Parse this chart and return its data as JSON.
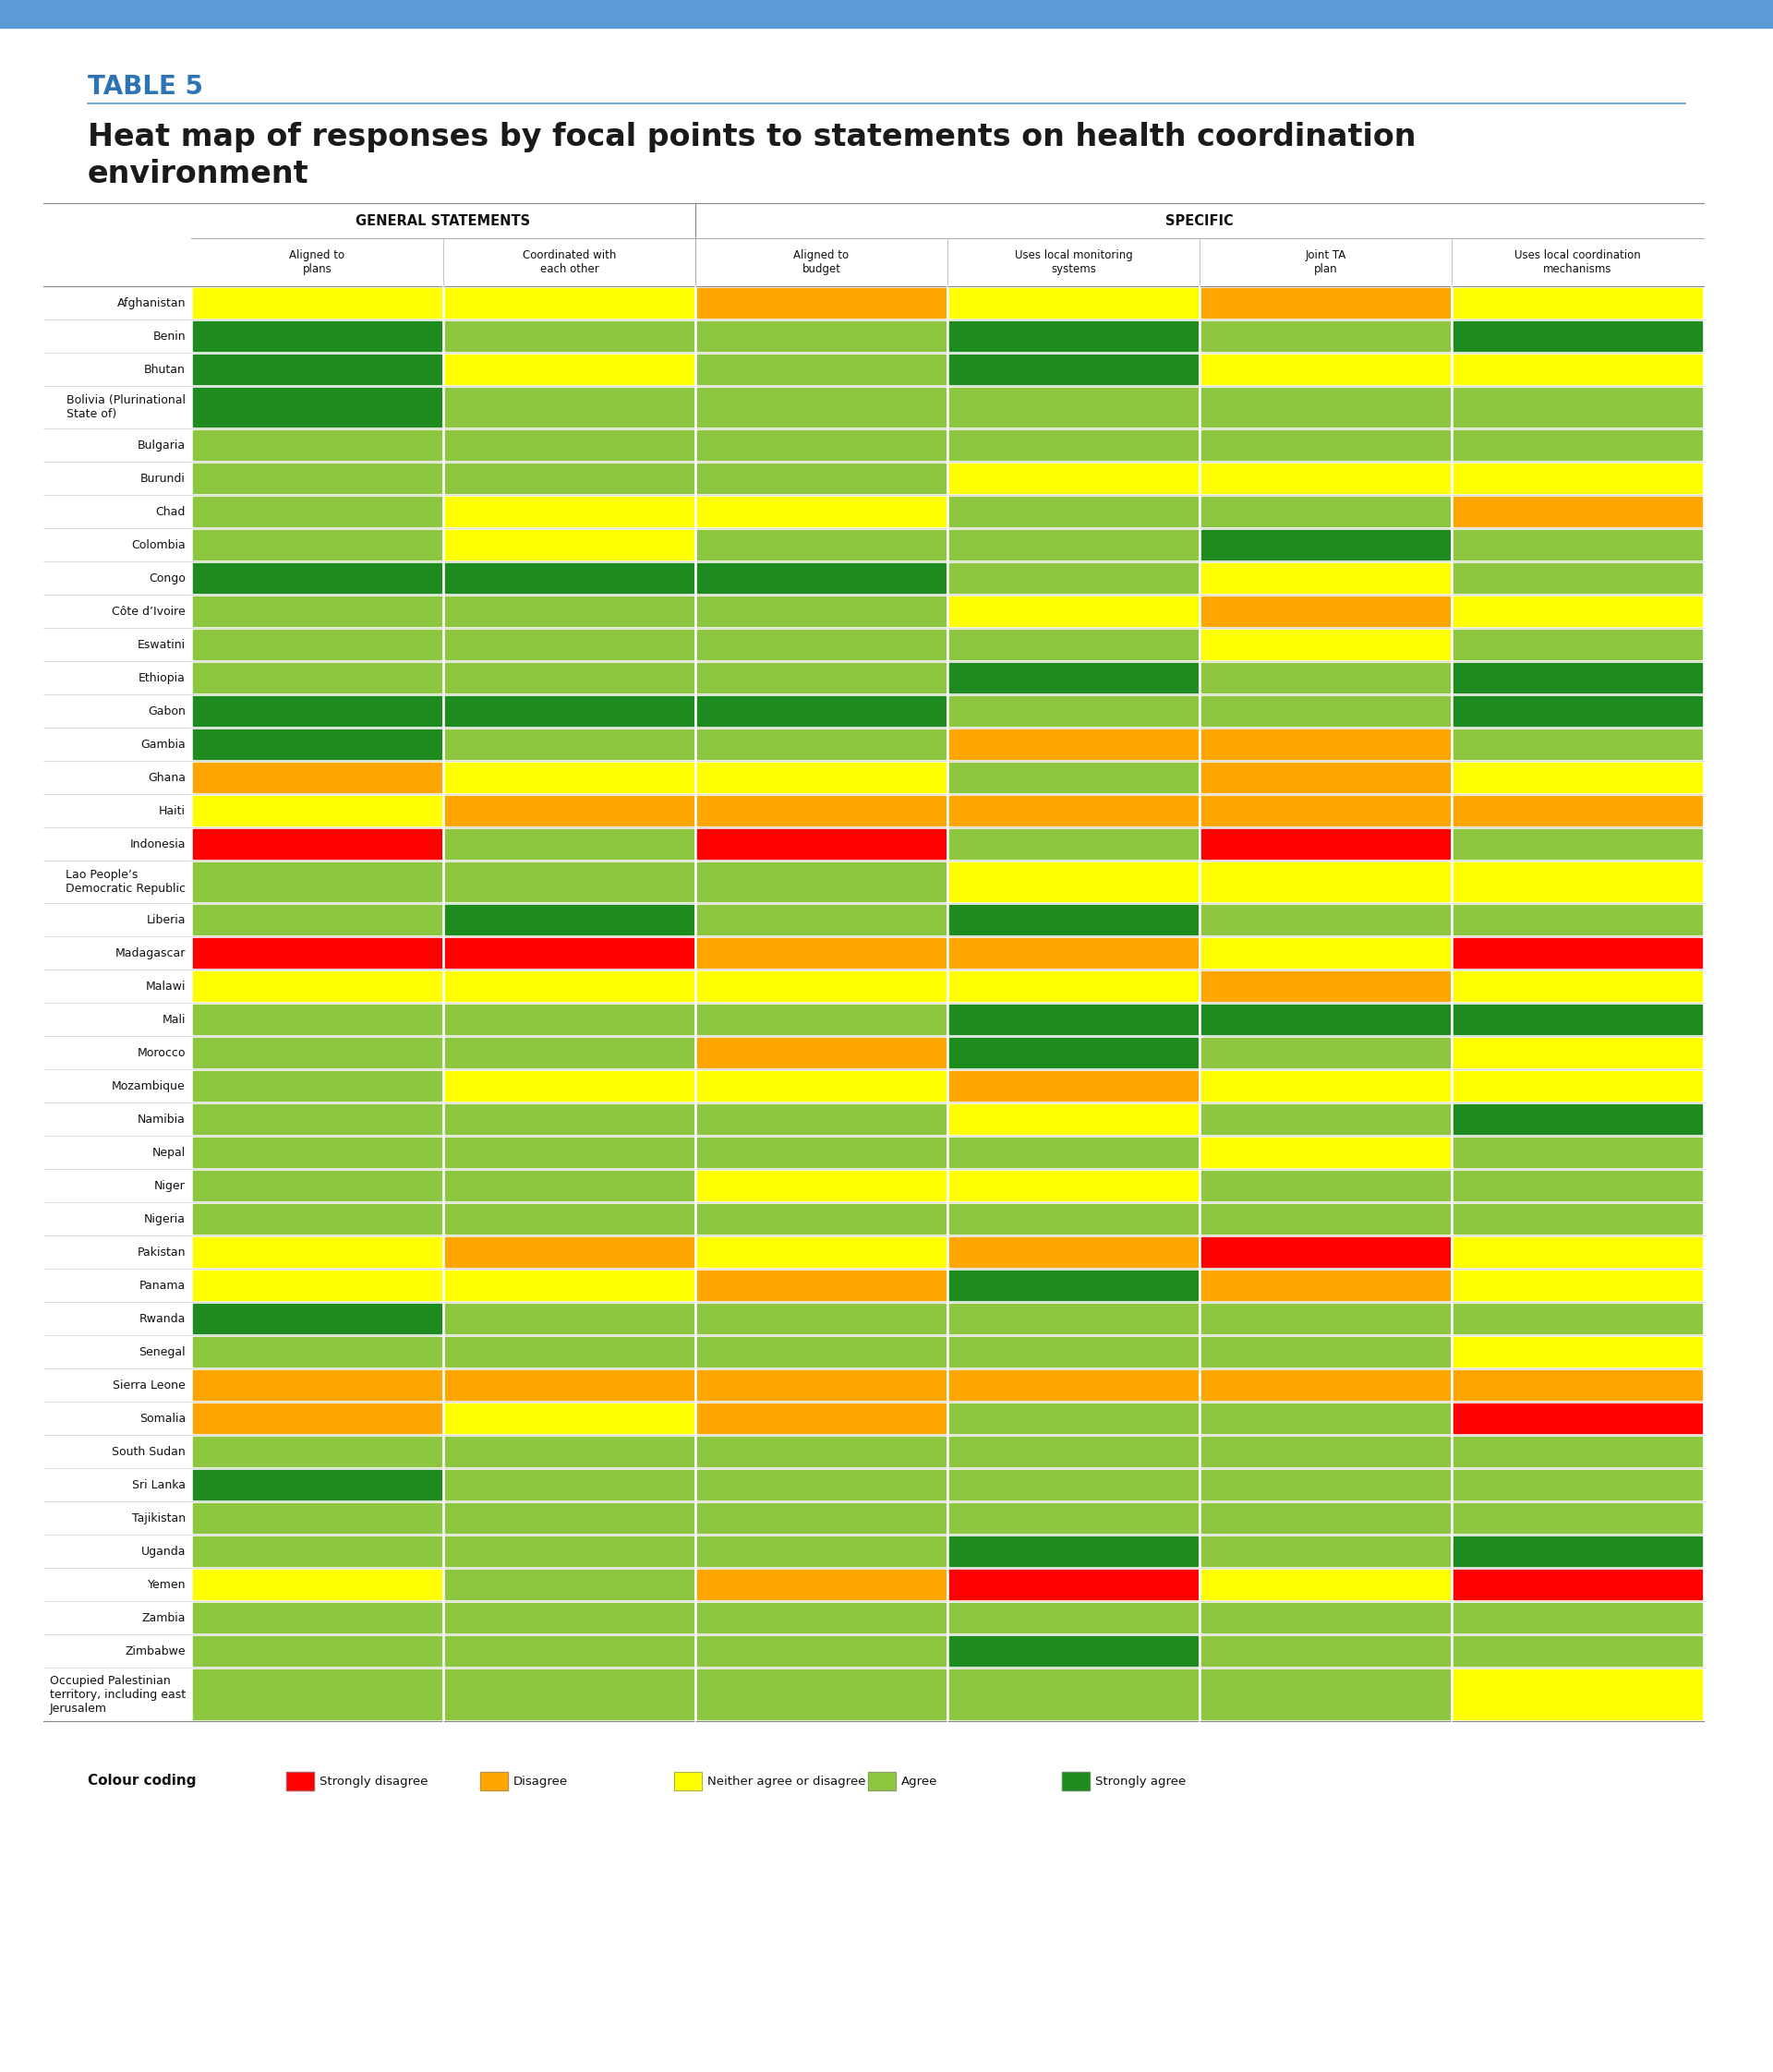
{
  "title_label": "TABLE 5",
  "title_line1": "Heat map of responses by focal points to statements on health coordination",
  "title_line2": "environment",
  "col_group1": "GENERAL STATEMENTS",
  "col_group2": "SPECIFIC",
  "columns": [
    "Aligned to\nplans",
    "Coordinated with\neach other",
    "Aligned to\nbudget",
    "Uses local monitoring\nsystems",
    "Joint TA\nplan",
    "Uses local coordination\nmechanisms"
  ],
  "countries": [
    "Afghanistan",
    "Benin",
    "Bhutan",
    "Bolivia (Plurinational\nState of)",
    "Bulgaria",
    "Burundi",
    "Chad",
    "Colombia",
    "Congo",
    "Côte d’Ivoire",
    "Eswatini",
    "Ethiopia",
    "Gabon",
    "Gambia",
    "Ghana",
    "Haiti",
    "Indonesia",
    "Lao People’s\nDemocratic Republic",
    "Liberia",
    "Madagascar",
    "Malawi",
    "Mali",
    "Morocco",
    "Mozambique",
    "Namibia",
    "Nepal",
    "Niger",
    "Nigeria",
    "Pakistan",
    "Panama",
    "Rwanda",
    "Senegal",
    "Sierra Leone",
    "Somalia",
    "South Sudan",
    "Sri Lanka",
    "Tajikistan",
    "Uganda",
    "Yemen",
    "Zambia",
    "Zimbabwe",
    "Occupied Palestinian\nterritory, including east\nJerusalem"
  ],
  "cell_data": [
    [
      "Y",
      "Y",
      "O",
      "Y",
      "O",
      "Y"
    ],
    [
      "DG",
      "LG",
      "LG",
      "DG",
      "LG",
      "DG"
    ],
    [
      "DG",
      "Y",
      "LG",
      "DG",
      "Y",
      "Y"
    ],
    [
      "DG",
      "LG",
      "LG",
      "LG",
      "LG",
      "LG"
    ],
    [
      "LG",
      "LG",
      "LG",
      "LG",
      "LG",
      "LG"
    ],
    [
      "LG",
      "LG",
      "LG",
      "Y",
      "Y",
      "Y"
    ],
    [
      "LG",
      "Y",
      "Y",
      "LG",
      "LG",
      "O"
    ],
    [
      "LG",
      "Y",
      "LG",
      "LG",
      "DG",
      "LG"
    ],
    [
      "DG",
      "DG",
      "DG",
      "LG",
      "Y",
      "LG"
    ],
    [
      "LG",
      "LG",
      "LG",
      "Y",
      "O",
      "Y"
    ],
    [
      "LG",
      "LG",
      "LG",
      "LG",
      "Y",
      "LG"
    ],
    [
      "LG",
      "LG",
      "LG",
      "DG",
      "LG",
      "DG"
    ],
    [
      "DG",
      "DG",
      "DG",
      "LG",
      "LG",
      "DG"
    ],
    [
      "DG",
      "LG",
      "LG",
      "O",
      "O",
      "LG"
    ],
    [
      "O",
      "Y",
      "Y",
      "LG",
      "O",
      "Y"
    ],
    [
      "Y",
      "O",
      "O",
      "O",
      "O",
      "O"
    ],
    [
      "R",
      "LG",
      "R",
      "LG",
      "R",
      "LG"
    ],
    [
      "LG",
      "LG",
      "LG",
      "Y",
      "Y",
      "Y"
    ],
    [
      "LG",
      "DG",
      "LG",
      "DG",
      "LG",
      "LG"
    ],
    [
      "R",
      "R",
      "O",
      "O",
      "Y",
      "R"
    ],
    [
      "Y",
      "Y",
      "Y",
      "Y",
      "O",
      "Y"
    ],
    [
      "LG",
      "LG",
      "LG",
      "DG",
      "DG",
      "DG"
    ],
    [
      "LG",
      "LG",
      "O",
      "DG",
      "LG",
      "Y"
    ],
    [
      "LG",
      "Y",
      "Y",
      "O",
      "Y",
      "Y"
    ],
    [
      "LG",
      "LG",
      "LG",
      "Y",
      "LG",
      "DG"
    ],
    [
      "LG",
      "LG",
      "LG",
      "LG",
      "Y",
      "LG"
    ],
    [
      "LG",
      "LG",
      "Y",
      "Y",
      "LG",
      "LG"
    ],
    [
      "LG",
      "LG",
      "LG",
      "LG",
      "LG",
      "LG"
    ],
    [
      "Y",
      "O",
      "Y",
      "O",
      "R",
      "Y"
    ],
    [
      "Y",
      "Y",
      "O",
      "DG",
      "O",
      "Y"
    ],
    [
      "DG",
      "LG",
      "LG",
      "LG",
      "LG",
      "LG"
    ],
    [
      "LG",
      "LG",
      "LG",
      "LG",
      "LG",
      "Y"
    ],
    [
      "O",
      "O",
      "O",
      "O",
      "O",
      "O"
    ],
    [
      "O",
      "Y",
      "O",
      "LG",
      "LG",
      "R"
    ],
    [
      "LG",
      "LG",
      "LG",
      "LG",
      "LG",
      "LG"
    ],
    [
      "DG",
      "LG",
      "LG",
      "LG",
      "LG",
      "LG"
    ],
    [
      "LG",
      "LG",
      "LG",
      "LG",
      "LG",
      "LG"
    ],
    [
      "LG",
      "LG",
      "LG",
      "DG",
      "LG",
      "DG"
    ],
    [
      "Y",
      "LG",
      "O",
      "R",
      "Y",
      "R"
    ],
    [
      "LG",
      "LG",
      "LG",
      "LG",
      "LG",
      "LG"
    ],
    [
      "LG",
      "LG",
      "LG",
      "DG",
      "LG",
      "LG"
    ],
    [
      "LG",
      "LG",
      "LG",
      "LG",
      "LG",
      "Y"
    ]
  ],
  "top_bar_color": "#5B9BD5",
  "divider_color": "#5B9BD5",
  "table_label_color": "#2E74B5",
  "bg_color": "#FFFFFF",
  "legend_items": [
    "Strongly disagree",
    "Disagree",
    "Neither agree or disagree",
    "Agree",
    "Strongly agree"
  ],
  "legend_colors": [
    "#FF0000",
    "#FFA500",
    "#FFFF00",
    "#8DC63F",
    "#1E8B1E"
  ]
}
